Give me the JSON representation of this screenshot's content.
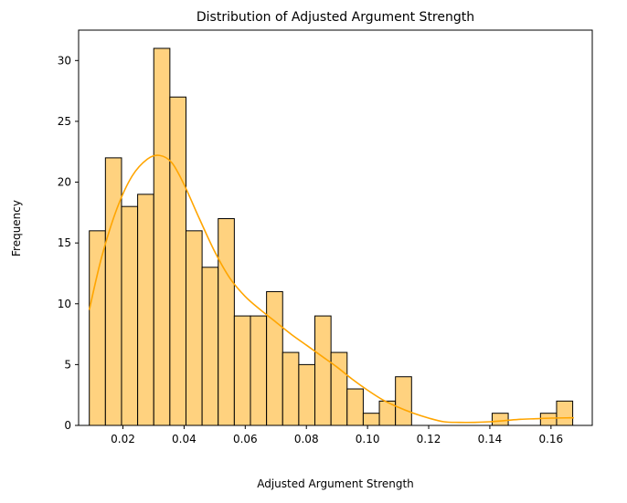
{
  "chart_data": {
    "type": "bar",
    "title": "Distribution of Adjusted Argument Strength",
    "xlabel": "Adjusted Argument Strength",
    "ylabel": "Frequency",
    "xlim": [
      0.0055,
      0.1735
    ],
    "ylim": [
      0,
      32.5
    ],
    "xticks": [
      0.02,
      0.04,
      0.06,
      0.08,
      0.1,
      0.12,
      0.14,
      0.16
    ],
    "xtick_labels": [
      "0.02",
      "0.04",
      "0.06",
      "0.08",
      "0.10",
      "0.12",
      "0.14",
      "0.16"
    ],
    "yticks": [
      0,
      5,
      10,
      15,
      20,
      25,
      30
    ],
    "ytick_labels": [
      "0",
      "5",
      "10",
      "15",
      "20",
      "25",
      "30"
    ],
    "bin_start": 0.009,
    "bin_width": 0.00527,
    "counts": [
      16,
      22,
      18,
      19,
      31,
      27,
      16,
      13,
      17,
      9,
      9,
      11,
      6,
      5,
      9,
      6,
      3,
      1,
      2,
      4,
      0,
      0,
      0,
      0,
      0,
      1,
      0,
      0,
      1,
      2
    ],
    "kde": {
      "x": [
        0.009,
        0.013,
        0.018,
        0.023,
        0.028,
        0.032,
        0.036,
        0.04,
        0.045,
        0.05,
        0.055,
        0.06,
        0.065,
        0.07,
        0.075,
        0.08,
        0.085,
        0.09,
        0.095,
        0.1,
        0.105,
        0.11,
        0.115,
        0.12,
        0.125,
        0.13,
        0.135,
        0.14,
        0.145,
        0.15,
        0.155,
        0.16,
        0.165,
        0.1675
      ],
      "y": [
        9.5,
        13.8,
        17.8,
        20.5,
        21.9,
        22.2,
        21.6,
        19.8,
        17.0,
        14.3,
        12.1,
        10.6,
        9.5,
        8.5,
        7.5,
        6.6,
        5.7,
        4.8,
        3.8,
        2.9,
        2.1,
        1.5,
        1.0,
        0.6,
        0.3,
        0.25,
        0.25,
        0.3,
        0.4,
        0.5,
        0.55,
        0.6,
        0.62,
        0.62
      ]
    },
    "bar_fill": "#ffd27f",
    "bar_edge": "#000000",
    "line_color": "#ffa500",
    "grid": false,
    "legend": "none"
  }
}
